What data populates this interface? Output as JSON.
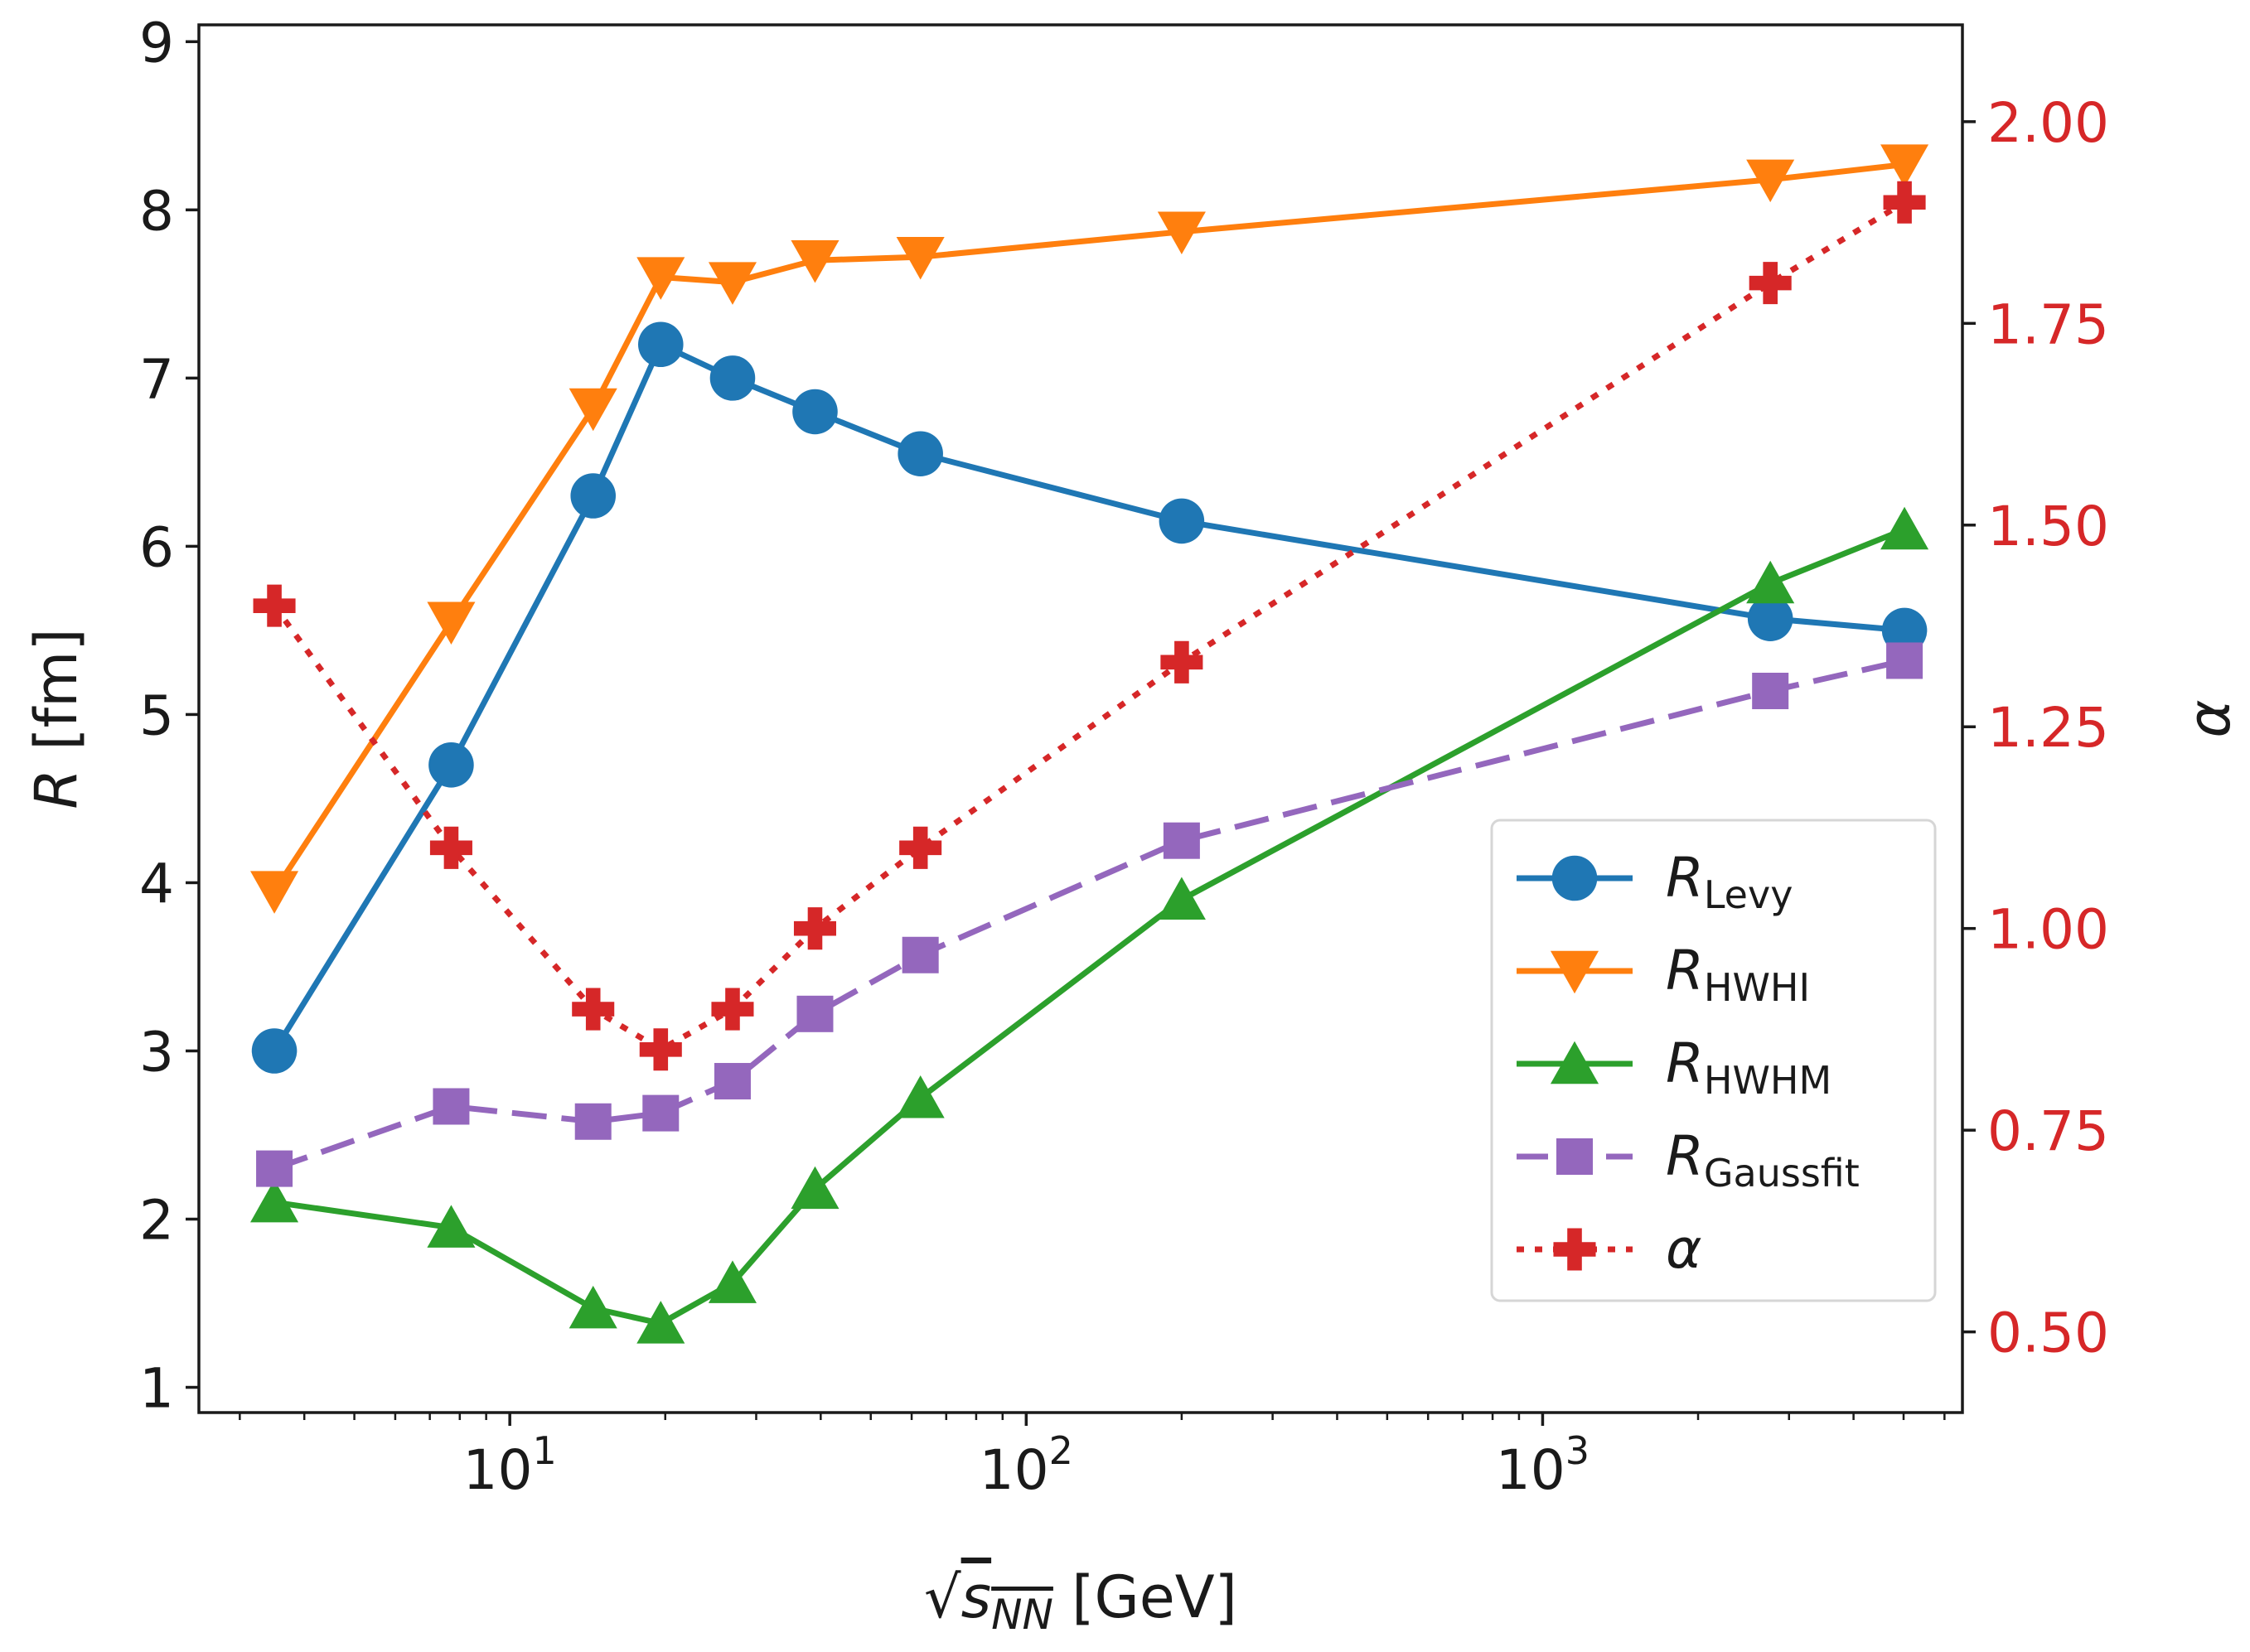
{
  "chart_data": {
    "type": "line",
    "x_scale": "log",
    "xlim": [
      2.5,
      6500
    ],
    "ylim": [
      0.85,
      9.1
    ],
    "y2lim": [
      0.4,
      2.12
    ],
    "x_ticks": [
      {
        "value": 10,
        "base": "10",
        "exp": "1"
      },
      {
        "value": 100,
        "base": "10",
        "exp": "2"
      },
      {
        "value": 1000,
        "base": "10",
        "exp": "3"
      }
    ],
    "y_ticks": [
      {
        "value": 1,
        "label": "1"
      },
      {
        "value": 2,
        "label": "2"
      },
      {
        "value": 3,
        "label": "3"
      },
      {
        "value": 4,
        "label": "4"
      },
      {
        "value": 5,
        "label": "5"
      },
      {
        "value": 6,
        "label": "6"
      },
      {
        "value": 7,
        "label": "7"
      },
      {
        "value": 8,
        "label": "8"
      },
      {
        "value": 9,
        "label": "9"
      }
    ],
    "y2_ticks": [
      {
        "value": 0.5,
        "label": "0.50"
      },
      {
        "value": 0.75,
        "label": "0.75"
      },
      {
        "value": 1.0,
        "label": "1.00"
      },
      {
        "value": 1.25,
        "label": "1.25"
      },
      {
        "value": 1.5,
        "label": "1.50"
      },
      {
        "value": 1.75,
        "label": "1.75"
      },
      {
        "value": 2.0,
        "label": "2.00"
      }
    ],
    "xlabel": {
      "sqrt": "√",
      "var": "s",
      "sub": "NN",
      "unit": " [GeV]"
    },
    "ylabel": {
      "var": "R",
      "unit": " [fm]"
    },
    "y2label": "α",
    "x": [
      3.5,
      7.7,
      14.5,
      19.6,
      27,
      39,
      62.4,
      200,
      2760,
      5020
    ],
    "series": [
      {
        "name": "R",
        "sub": "Levy",
        "axis": "left",
        "color": "#1f77b4",
        "marker": "circle",
        "dash": "solid",
        "values": [
          3.0,
          4.7,
          6.3,
          7.2,
          7.0,
          6.8,
          6.55,
          6.15,
          5.57,
          5.5
        ]
      },
      {
        "name": "R",
        "sub": "HWHI",
        "axis": "left",
        "color": "#ff7f0e",
        "marker": "triangle-down",
        "dash": "solid",
        "values": [
          3.95,
          5.55,
          6.82,
          7.6,
          7.57,
          7.7,
          7.72,
          7.87,
          8.18,
          8.27
        ]
      },
      {
        "name": "R",
        "sub": "HWHM",
        "axis": "left",
        "color": "#2ca02c",
        "marker": "triangle-up",
        "dash": "solid",
        "values": [
          2.1,
          1.95,
          1.47,
          1.38,
          1.62,
          2.18,
          2.72,
          3.9,
          5.78,
          6.1
        ]
      },
      {
        "name": "R",
        "sub": "Gaussfit",
        "axis": "left",
        "color": "#9467bd",
        "marker": "square",
        "dash": "dashed",
        "values": [
          2.3,
          2.67,
          2.58,
          2.63,
          2.82,
          3.22,
          3.57,
          4.25,
          5.14,
          5.32
        ]
      },
      {
        "name": "α",
        "sub": "",
        "axis": "right",
        "color": "#d62728",
        "marker": "plus",
        "dash": "dotted",
        "values": [
          1.4,
          1.1,
          0.9,
          0.85,
          0.9,
          1.0,
          1.1,
          1.33,
          1.8,
          1.9
        ]
      }
    ],
    "legend_position": "center-right"
  }
}
